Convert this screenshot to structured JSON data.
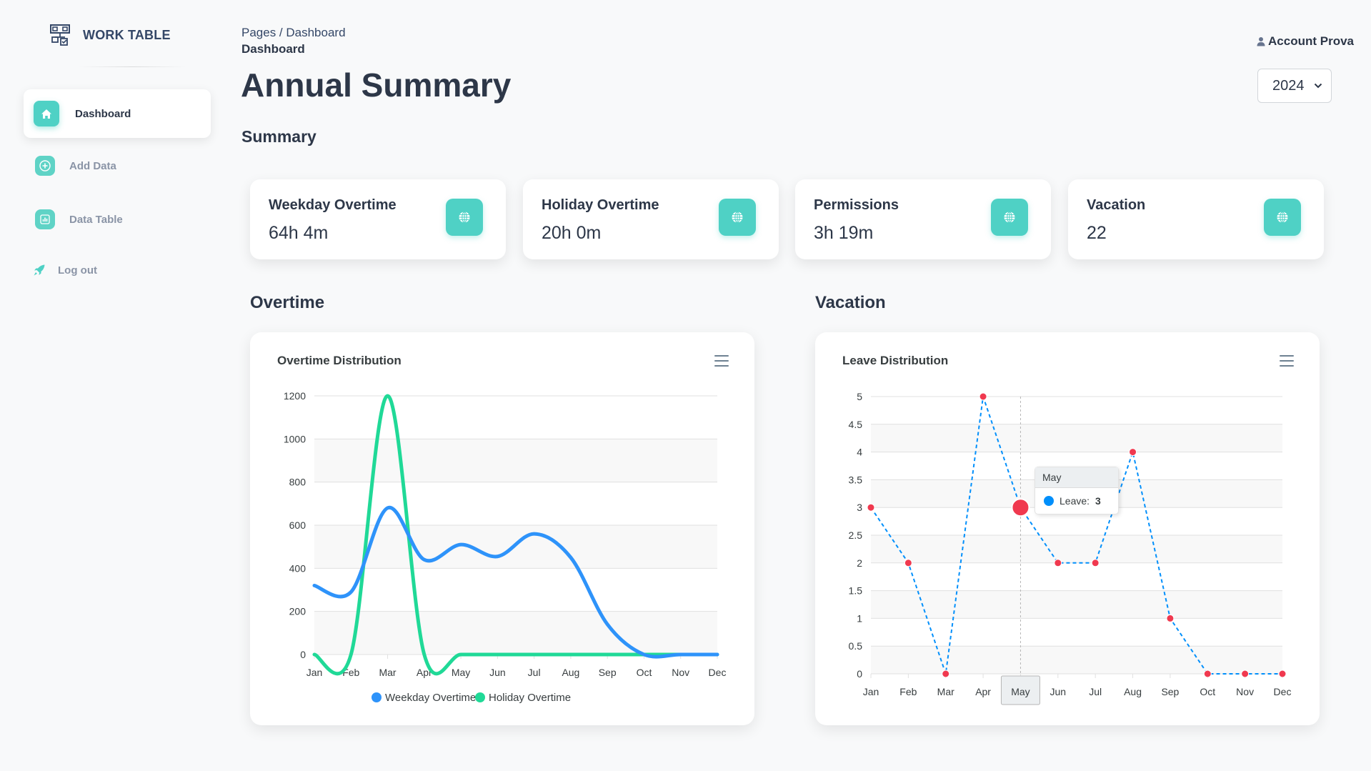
{
  "brand": {
    "name": "WORK TABLE",
    "icon": "sitemap-icon"
  },
  "sidebar": {
    "items": [
      {
        "label": "Dashboard",
        "icon": "home-icon",
        "active": true
      },
      {
        "label": "Add Data",
        "icon": "plus-icon",
        "active": false
      },
      {
        "label": "Data Table",
        "icon": "bar-chart-icon",
        "active": false
      },
      {
        "label": "Log out",
        "icon": "rocket-icon",
        "active": false
      }
    ]
  },
  "header": {
    "breadcrumb_root": "Pages",
    "breadcrumb_separator": " / ",
    "breadcrumb_page": "Dashboard",
    "breadcrumb_current": "Dashboard",
    "title": "Annual Summary",
    "account_label": "Account Prova",
    "year_selected": "2024"
  },
  "summary": {
    "title": "Summary",
    "cards": [
      {
        "label": "Weekday Overtime",
        "value": "64h 4m",
        "icon": "globe-icon"
      },
      {
        "label": "Holiday Overtime",
        "value": "20h 0m",
        "icon": "globe-icon"
      },
      {
        "label": "Permissions",
        "value": "3h 19m",
        "icon": "globe-icon"
      },
      {
        "label": "Vacation",
        "value": "22",
        "icon": "globe-icon"
      }
    ]
  },
  "sections": {
    "overtime": "Overtime",
    "vacation": "Vacation"
  },
  "colors": {
    "accent": "#4fd1c5",
    "weekday": "#2e93fa",
    "holiday": "#20d997",
    "leave_line": "#008ffb",
    "leave_marker": "#f0394f"
  },
  "chart_data": [
    {
      "type": "line",
      "title": "Overtime Distribution",
      "categories": [
        "Jan",
        "Feb",
        "Mar",
        "Apr",
        "May",
        "Jun",
        "Jul",
        "Aug",
        "Sep",
        "Oct",
        "Nov",
        "Dec"
      ],
      "ylim": [
        0,
        1200
      ],
      "yticks": [
        0,
        200,
        400,
        600,
        800,
        1000,
        1200
      ],
      "series": [
        {
          "name": "Weekday Overtime",
          "values": [
            320,
            290,
            680,
            440,
            510,
            455,
            560,
            450,
            140,
            0,
            0,
            0
          ]
        },
        {
          "name": "Holiday Overtime",
          "values": [
            0,
            0,
            1200,
            0,
            0,
            0,
            0,
            0,
            0,
            0,
            0,
            0
          ]
        }
      ],
      "grid": true,
      "legend": "bottom"
    },
    {
      "type": "line",
      "title": "Leave Distribution",
      "categories": [
        "Jan",
        "Feb",
        "Mar",
        "Apr",
        "May",
        "Jun",
        "Jul",
        "Aug",
        "Sep",
        "Oct",
        "Nov",
        "Dec"
      ],
      "ylim": [
        0,
        5
      ],
      "yticks": [
        "0",
        "0.5",
        "1",
        "1.5",
        "2",
        "2.5",
        "3",
        "3.5",
        "4",
        "4.5",
        "5"
      ],
      "series": [
        {
          "name": "Leave",
          "values": [
            3,
            2,
            0,
            5,
            3,
            2,
            2,
            4,
            1,
            0,
            0,
            0
          ]
        }
      ],
      "grid": true,
      "tooltip": {
        "category": "May",
        "series": "Leave",
        "label": "Leave:",
        "value": "3"
      }
    }
  ]
}
